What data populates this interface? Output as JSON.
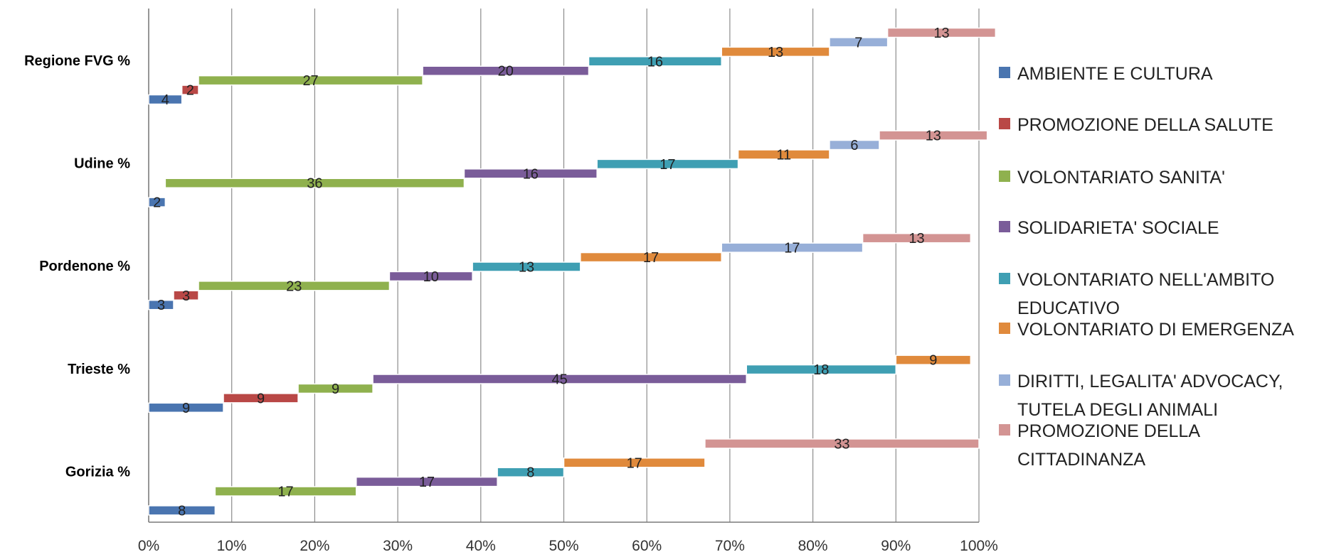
{
  "chart_data": {
    "type": "bar",
    "subtype": "100% stacked horizontal bar (clustered by series)",
    "categories": [
      "Regione FVG %",
      "Udine %",
      "Pordenone %",
      "Trieste %",
      "Gorizia %"
    ],
    "x_ticks": [
      "0%",
      "10%",
      "20%",
      "30%",
      "40%",
      "50%",
      "60%",
      "70%",
      "80%",
      "90%",
      "100%"
    ],
    "xlim": [
      0,
      100
    ],
    "grid": true,
    "legend_position": "right",
    "series": [
      {
        "name": "AMBIENTE E CULTURA",
        "color": "#4a75b0",
        "values": [
          4,
          2,
          3,
          9,
          8
        ]
      },
      {
        "name": "PROMOZIONE DELLA SALUTE",
        "color": "#b94846",
        "values": [
          2,
          null,
          3,
          9,
          null
        ]
      },
      {
        "name": "VOLONTARIATO SANITA'",
        "color": "#8fb14e",
        "values": [
          27,
          36,
          23,
          9,
          17
        ]
      },
      {
        "name": "SOLIDARIETA' SOCIALE",
        "color": "#7a5c99",
        "values": [
          20,
          16,
          10,
          45,
          17
        ]
      },
      {
        "name": "VOLONTARIATO NELL'AMBITO EDUCATIVO",
        "legend_lines": [
          "VOLONTARIATO NELL'AMBITO",
          "EDUCATIVO"
        ],
        "color": "#3f9fb3",
        "values": [
          16,
          17,
          13,
          18,
          8
        ]
      },
      {
        "name": "VOLONTARIATO DI EMERGENZA",
        "legend_lines": [
          "VOLONTARIATO DI EMERGENZA"
        ],
        "color": "#e08a3c",
        "values": [
          13,
          11,
          17,
          9,
          17
        ]
      },
      {
        "name": "DIRITTI, LEGALITA' ADVOCACY, TUTELA DEGLI ANIMALI",
        "legend_lines": [
          "DIRITTI, LEGALITA' ADVOCACY,",
          "TUTELA DEGLI ANIMALI"
        ],
        "color": "#97afd8",
        "values": [
          7,
          6,
          17,
          null,
          null
        ]
      },
      {
        "name": "PROMOZIONE DELLA CITTADINANZA",
        "legend_lines": [
          "PROMOZIONE DELLA",
          "CITTADINANZA"
        ],
        "color": "#d39493",
        "values": [
          13,
          13,
          13,
          null,
          33
        ]
      }
    ]
  }
}
